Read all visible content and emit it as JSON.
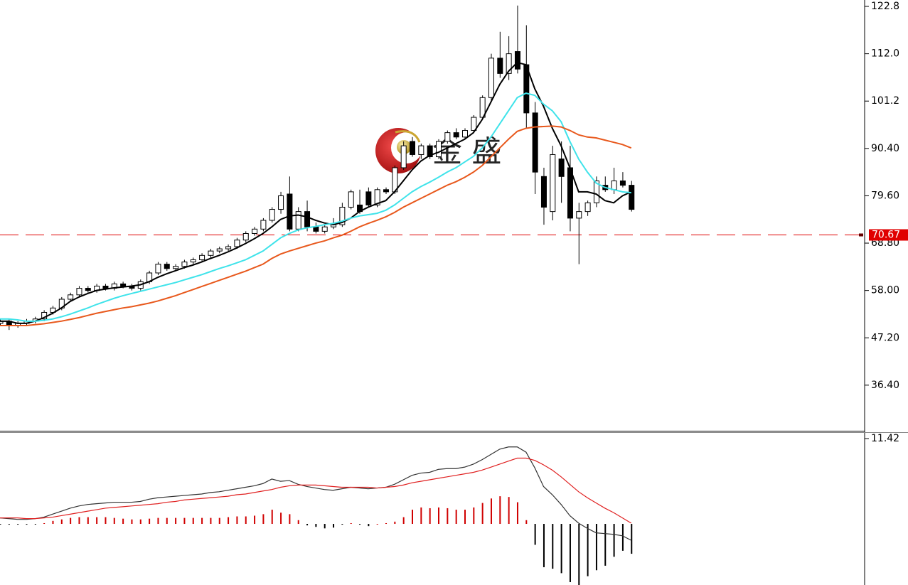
{
  "chart_data": {
    "type": "candlestick",
    "open": [
      50.5,
      51,
      50,
      50.5,
      51,
      51.5,
      53,
      54,
      56,
      57,
      58.5,
      58,
      59,
      58.5,
      59.5,
      59,
      58.5,
      60,
      62,
      64,
      63,
      63.5,
      64.5,
      65,
      66,
      67,
      67.5,
      68,
      69.5,
      71,
      72,
      74,
      76.5,
      80,
      72,
      76,
      72.5,
      71.5,
      72.5,
      73,
      77,
      77.5,
      80.5,
      77.5,
      81,
      80.5,
      86,
      92,
      89,
      91,
      88.5,
      92,
      94,
      93,
      94.5,
      97.5,
      102,
      111,
      107.5,
      112.5,
      109.5,
      98.5,
      84,
      76,
      88,
      86,
      74.5,
      76,
      78,
      82,
      81,
      83,
      82
    ],
    "high": [
      51.5,
      51.5,
      51,
      51.5,
      52,
      53.5,
      54.5,
      56.5,
      57.5,
      59,
      59,
      59.5,
      59.5,
      60,
      60,
      59.5,
      60.5,
      62.5,
      64.5,
      64.5,
      64,
      65,
      65.5,
      66.5,
      67.5,
      68,
      68.5,
      70,
      71.5,
      72.5,
      74.5,
      77,
      80.5,
      84,
      77,
      78.5,
      73.5,
      73,
      74.5,
      78,
      81,
      81,
      81.5,
      81.5,
      81.5,
      86.5,
      92,
      93,
      91.5,
      91.5,
      92.5,
      94.5,
      95,
      95,
      98,
      102.5,
      112,
      117,
      116,
      123,
      118.5,
      101,
      86,
      91,
      92,
      91,
      78,
      78.5,
      84,
      84,
      86,
      85,
      83
    ],
    "low": [
      50,
      49,
      49.5,
      50,
      50.5,
      51,
      52.5,
      53.5,
      55.5,
      56.5,
      57.5,
      57.5,
      58,
      58,
      58.5,
      58,
      58,
      59.5,
      61.5,
      62.5,
      62.5,
      63,
      64,
      64.5,
      65.5,
      66.5,
      67,
      67.5,
      69,
      70.5,
      71.5,
      73.5,
      75.5,
      71.5,
      71.5,
      71.5,
      71,
      71,
      72,
      72.5,
      76.5,
      75.5,
      77,
      77,
      80,
      80,
      85.5,
      88.5,
      88,
      88,
      88,
      91.5,
      92.5,
      92.5,
      94,
      97,
      101,
      106.5,
      106,
      107.5,
      95,
      80,
      73,
      74,
      78,
      71.5,
      64,
      75,
      77,
      80.5,
      80,
      81.5,
      76
    ],
    "close": [
      51,
      50,
      50.5,
      51,
      51.5,
      53,
      54,
      56,
      57,
      58.5,
      58,
      59,
      58.5,
      59.5,
      59,
      58.5,
      60,
      62,
      64,
      63,
      63.5,
      64.5,
      65,
      66,
      67,
      67.5,
      68,
      69.5,
      71,
      72,
      74,
      76.5,
      79.6,
      72,
      76,
      72.5,
      71.5,
      72.5,
      73,
      77,
      80.5,
      76,
      77.5,
      81,
      80.5,
      86,
      91,
      89,
      91,
      88.5,
      92,
      94,
      93,
      94.5,
      97.5,
      102,
      111,
      107.5,
      112,
      108.5,
      98.5,
      85,
      77,
      89,
      84,
      74.5,
      76,
      78,
      83,
      81,
      83,
      82,
      76.5
    ],
    "up_color": "#ffffff",
    "down_color": "#000000",
    "ylim": [
      26.0,
      124.26
    ],
    "yticks": [
      122.8,
      {
        "value": 112.0,
        "label": "112.0"
      },
      101.2,
      {
        "value": 90.4,
        "label": "90.40"
      },
      {
        "value": 79.6,
        "label": "79.60"
      },
      {
        "value": 68.8,
        "label": "68.80"
      },
      {
        "value": 58.0,
        "label": "58.00"
      },
      {
        "value": 47.2,
        "label": "47.20"
      },
      {
        "value": 36.4,
        "label": "36.40"
      }
    ],
    "current_price": 70.67,
    "current_price_color": "#e00000",
    "series": [
      {
        "color": "#000000",
        "values": [
          51,
          51,
          50.5,
          50.5,
          51,
          51.8,
          52.8,
          54,
          55.5,
          56.5,
          57.3,
          58,
          58.3,
          58.6,
          58.8,
          59,
          59.3,
          60,
          61,
          61.8,
          62.5,
          63.2,
          63.8,
          64.5,
          65.3,
          66,
          66.8,
          67.7,
          68.7,
          69.8,
          71,
          72.5,
          74.2,
          75,
          75.2,
          74.8,
          74,
          73.4,
          73,
          73.5,
          74.5,
          76,
          77,
          77.8,
          78.5,
          80.5,
          83,
          85.5,
          87.5,
          88.8,
          89.5,
          90.5,
          91.5,
          92.5,
          94,
          97,
          101,
          105,
          108,
          110,
          109.5,
          104,
          100,
          95,
          91,
          86,
          80.5,
          80.5,
          80,
          78.5,
          78,
          79.6,
          80.5
        ]
      },
      {
        "color": "#3fe3ea",
        "values": [
          51.5,
          51.5,
          51.3,
          51,
          51,
          51.2,
          51.5,
          52,
          52.6,
          53.3,
          54,
          54.8,
          55.5,
          56.2,
          56.8,
          57.3,
          57.8,
          58.3,
          58.8,
          59.3,
          59.8,
          60.4,
          61,
          61.6,
          62.3,
          63,
          63.6,
          64.3,
          65,
          66,
          67,
          68.5,
          70,
          71,
          71.8,
          72.3,
          72.6,
          73,
          73.3,
          73.8,
          74.5,
          75,
          75.3,
          75.6,
          76.3,
          77.5,
          79,
          80.5,
          81.7,
          82.7,
          83.8,
          85,
          86,
          87.3,
          88.6,
          90.5,
          93,
          96,
          99,
          102,
          103,
          102.5,
          100.5,
          99,
          96.5,
          92,
          88,
          85,
          82.5,
          81.5,
          81,
          80.5,
          80.3
        ]
      },
      {
        "color": "#e8581c",
        "values": [
          50,
          50,
          50,
          50,
          50.2,
          50.4,
          50.7,
          51,
          51.4,
          51.8,
          52.3,
          52.8,
          53.2,
          53.6,
          54,
          54.3,
          54.7,
          55.1,
          55.6,
          56.2,
          56.8,
          57.5,
          58.2,
          58.9,
          59.6,
          60.3,
          61,
          61.7,
          62.4,
          63.2,
          64,
          65.3,
          66.3,
          67,
          67.6,
          68.2,
          68.8,
          69.3,
          70,
          70.6,
          71.5,
          72.5,
          73.3,
          74,
          74.8,
          75.8,
          77,
          78,
          79,
          80,
          81,
          82,
          82.8,
          83.8,
          85,
          86.5,
          88.5,
          90.5,
          92.5,
          94.3,
          95,
          95.3,
          95.4,
          95.5,
          95.3,
          94.5,
          93.5,
          93,
          92.8,
          92.3,
          91.8,
          91.3,
          90.5
        ]
      }
    ],
    "watermark": "金 盛",
    "indicator": {
      "ylim": [
        -8.18,
        12.37
      ],
      "yticks": [
        11.42
      ],
      "series": [
        {
          "color": "#333333",
          "values": [
            0.8,
            0.7,
            0.6,
            0.6,
            0.7,
            0.9,
            1.3,
            1.7,
            2.1,
            2.4,
            2.6,
            2.7,
            2.8,
            2.9,
            2.9,
            2.9,
            3.0,
            3.3,
            3.5,
            3.6,
            3.7,
            3.8,
            3.9,
            4.0,
            4.2,
            4.3,
            4.5,
            4.7,
            4.9,
            5.1,
            5.4,
            6.0,
            5.7,
            5.8,
            5.3,
            5.0,
            4.8,
            4.6,
            4.5,
            4.7,
            4.9,
            4.8,
            4.7,
            4.8,
            4.9,
            5.3,
            5.9,
            6.5,
            6.8,
            6.9,
            7.3,
            7.4,
            7.4,
            7.6,
            8.0,
            8.6,
            9.3,
            10.0,
            10.3,
            10.3,
            9.6,
            7.5,
            5.0,
            3.9,
            2.6,
            1.1,
            0.1,
            -0.6,
            -1.2,
            -1.3,
            -1.4,
            -1.6,
            -2.2
          ]
        },
        {
          "color": "#e02020",
          "values": [
            0.8,
            0.8,
            0.8,
            0.7,
            0.7,
            0.8,
            0.9,
            1.1,
            1.3,
            1.5,
            1.7,
            1.9,
            2.1,
            2.2,
            2.3,
            2.4,
            2.5,
            2.6,
            2.7,
            2.9,
            3.0,
            3.2,
            3.3,
            3.4,
            3.5,
            3.6,
            3.7,
            3.9,
            4.0,
            4.2,
            4.4,
            4.6,
            4.9,
            5.1,
            5.2,
            5.2,
            5.2,
            5.1,
            5.0,
            4.9,
            4.9,
            4.9,
            4.9,
            4.8,
            4.9,
            5.0,
            5.2,
            5.5,
            5.7,
            5.9,
            6.1,
            6.3,
            6.5,
            6.7,
            6.9,
            7.2,
            7.6,
            8.0,
            8.4,
            8.8,
            8.8,
            8.5,
            7.9,
            7.2,
            6.3,
            5.3,
            4.3,
            3.5,
            2.8,
            2.1,
            1.5,
            0.8,
            0.1
          ]
        }
      ],
      "histogram": {
        "up_color": "#d00000",
        "down_color": "#000000",
        "values": [
          -0.05,
          -0.1,
          -0.1,
          -0.1,
          -0.05,
          0.1,
          0.4,
          0.6,
          0.8,
          0.9,
          0.9,
          0.9,
          0.9,
          0.8,
          0.7,
          0.6,
          0.6,
          0.7,
          0.8,
          0.8,
          0.8,
          0.8,
          0.8,
          0.8,
          0.8,
          0.8,
          0.9,
          1.0,
          1.0,
          1.1,
          1.3,
          1.9,
          1.5,
          1.3,
          0.5,
          -0.2,
          -0.4,
          -0.6,
          -0.5,
          -0.1,
          0.1,
          -0.1,
          -0.3,
          0,
          0.1,
          0.3,
          0.9,
          1.9,
          2.2,
          2.1,
          2.2,
          2.1,
          1.9,
          1.9,
          2.2,
          2.8,
          3.4,
          3.7,
          3.6,
          2.9,
          0.5,
          -2.8,
          -5.8,
          -6.0,
          -6.6,
          -7.8,
          -8.2,
          -7.0,
          -6.2,
          -5.6,
          -4.4,
          -3.6,
          -4.0
        ]
      }
    }
  }
}
